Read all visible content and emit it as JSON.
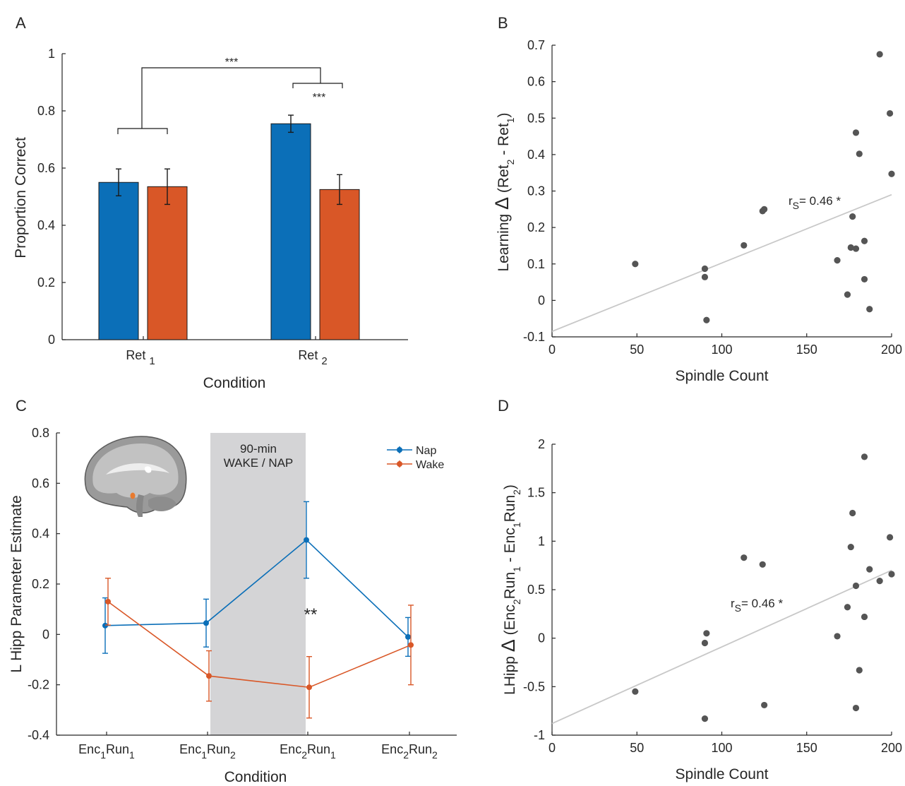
{
  "colors": {
    "nap": "#0b6fb8",
    "wake": "#d95727",
    "scatter_point": "#555555",
    "fit_line": "#c8c8c8",
    "shade": "#d4d4d6",
    "axis": "#262626"
  },
  "chart_data": [
    {
      "panel": "A",
      "type": "bar",
      "title": "",
      "xlabel": "Condition",
      "ylabel": "Proportion Correct",
      "ylim": [
        0,
        1
      ],
      "yticks": [
        "0",
        "0.2",
        "0.4",
        "0.6",
        "0.8",
        "1"
      ],
      "categories": [
        {
          "base": "Ret",
          "sub": "1"
        },
        {
          "base": "Ret",
          "sub": "2"
        }
      ],
      "series": [
        {
          "color": "#0b6fb8",
          "values": [
            0.55,
            0.755
          ],
          "errors": [
            0.047,
            0.03
          ]
        },
        {
          "color": "#d95727",
          "values": [
            0.535,
            0.525
          ],
          "errors": [
            0.062,
            0.052
          ]
        }
      ],
      "annotations": [
        {
          "type": "bracket",
          "label": "***",
          "between": "Ret1 vs Ret2"
        },
        {
          "type": "bracket",
          "label": "***",
          "between": "Ret2 blue vs Ret2 orange"
        }
      ]
    },
    {
      "panel": "B",
      "type": "scatter",
      "title": "",
      "xlabel": "Spindle Count",
      "ylabel_parts": [
        "Learning ",
        "Δ",
        " (Ret",
        "2",
        " - Ret",
        "1",
        ")"
      ],
      "xlim": [
        0,
        200
      ],
      "ylim": [
        -0.1,
        0.7
      ],
      "xticks": [
        "0",
        "50",
        "100",
        "150",
        "200"
      ],
      "yticks": [
        "-0.1",
        "0",
        "0.1",
        "0.2",
        "0.3",
        "0.4",
        "0.5",
        "0.6",
        "0.7"
      ],
      "points": [
        [
          49,
          0.1
        ],
        [
          90,
          0.087
        ],
        [
          90,
          0.064
        ],
        [
          91,
          -0.054
        ],
        [
          113,
          0.151
        ],
        [
          124,
          0.245
        ],
        [
          125,
          0.25
        ],
        [
          168,
          0.11
        ],
        [
          174,
          0.016
        ],
        [
          176,
          0.145
        ],
        [
          177,
          0.23
        ],
        [
          179,
          0.46
        ],
        [
          179,
          0.142
        ],
        [
          181,
          0.402
        ],
        [
          184,
          0.163
        ],
        [
          184,
          0.058
        ],
        [
          187,
          -0.024
        ],
        [
          193,
          0.675
        ],
        [
          199,
          0.513
        ],
        [
          200,
          0.347
        ]
      ],
      "fit": {
        "x": [
          0,
          200
        ],
        "y": [
          -0.085,
          0.29
        ]
      },
      "annotation": {
        "r": "r",
        "sub": "S",
        "text": "= 0.46 *"
      }
    },
    {
      "panel": "C",
      "type": "line",
      "title": "",
      "xlabel": "Condition",
      "ylabel": "L Hipp Parameter Estimate",
      "ylim": [
        -0.4,
        0.8
      ],
      "yticks": [
        "-0.4",
        "-0.2",
        "0",
        "0.2",
        "0.4",
        "0.6",
        "0.8"
      ],
      "categories": [
        [
          {
            "t": "Enc",
            "s": false
          },
          {
            "t": "1",
            "s": true
          },
          {
            "t": "Run",
            "s": false
          },
          {
            "t": "1",
            "s": true
          }
        ],
        [
          {
            "t": "Enc",
            "s": false
          },
          {
            "t": "1",
            "s": true
          },
          {
            "t": "Run",
            "s": false
          },
          {
            "t": "2",
            "s": true
          }
        ],
        [
          {
            "t": "Enc",
            "s": false
          },
          {
            "t": "2",
            "s": true
          },
          {
            "t": "Run",
            "s": false
          },
          {
            "t": "1",
            "s": true
          }
        ],
        [
          {
            "t": "Enc",
            "s": false
          },
          {
            "t": "2",
            "s": true
          },
          {
            "t": "Run",
            "s": false
          },
          {
            "t": "2",
            "s": true
          }
        ]
      ],
      "series": [
        {
          "name": "Nap",
          "color": "#0b6fb8",
          "values": [
            0.035,
            0.045,
            0.375,
            -0.01
          ],
          "errors": [
            0.11,
            0.095,
            0.152,
            0.077
          ]
        },
        {
          "name": "Wake",
          "color": "#d95727",
          "values": [
            0.13,
            -0.165,
            -0.21,
            -0.042
          ],
          "errors": [
            0.093,
            0.1,
            0.122,
            0.158
          ]
        }
      ],
      "shaded_region": {
        "from_category": 1,
        "to_category": 2,
        "label_lines": [
          "90-min",
          "WAKE / NAP"
        ]
      },
      "annotation": "**",
      "legend_position": "top-right",
      "inset_image": "brain-sagittal-mri"
    },
    {
      "panel": "D",
      "type": "scatter",
      "title": "",
      "xlabel": "Spindle Count",
      "ylabel_parts": [
        "LHipp ",
        "Δ",
        " (Enc",
        "2",
        "Run",
        "1",
        " - Enc",
        "1",
        "Run",
        "2",
        ")"
      ],
      "xlim": [
        0,
        200
      ],
      "ylim": [
        -1,
        2
      ],
      "xticks": [
        "0",
        "50",
        "100",
        "150",
        "200"
      ],
      "yticks": [
        "-1",
        "-0.5",
        "0",
        "0.5",
        "1",
        "1.5",
        "2"
      ],
      "points": [
        [
          49,
          -0.55
        ],
        [
          90,
          -0.05
        ],
        [
          90,
          -0.83
        ],
        [
          91,
          0.05
        ],
        [
          113,
          0.83
        ],
        [
          124,
          0.76
        ],
        [
          125,
          -0.69
        ],
        [
          168,
          0.02
        ],
        [
          174,
          0.32
        ],
        [
          176,
          0.94
        ],
        [
          177,
          1.29
        ],
        [
          179,
          -0.72
        ],
        [
          179,
          0.54
        ],
        [
          181,
          -0.33
        ],
        [
          184,
          1.87
        ],
        [
          184,
          0.22
        ],
        [
          187,
          0.71
        ],
        [
          193,
          0.59
        ],
        [
          199,
          1.04
        ],
        [
          200,
          0.66
        ]
      ],
      "fit": {
        "x": [
          0,
          200
        ],
        "y": [
          -0.88,
          0.7
        ]
      },
      "annotation": {
        "r": "r",
        "sub": "S",
        "text": "= 0.46 *"
      }
    }
  ],
  "panels": {
    "a": {
      "letter": "A"
    },
    "b": {
      "letter": "B"
    },
    "c": {
      "letter": "C"
    },
    "d": {
      "letter": "D"
    }
  }
}
